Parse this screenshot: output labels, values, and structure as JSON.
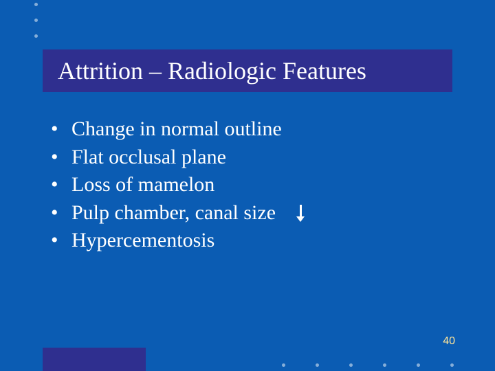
{
  "colors": {
    "background": "#0b5cb3",
    "title_bar": "#2f2f8f",
    "accent_block": "#2f2f8f",
    "text": "#ffffff",
    "page_number": "#ffe59a",
    "deco_dot": "rgba(255,255,255,0.5)"
  },
  "typography": {
    "title_fontsize": 36,
    "body_fontsize": 30,
    "font_family": "Times New Roman",
    "page_number_fontsize": 16,
    "page_number_font_family": "Arial"
  },
  "title": "Attrition – Radiologic Features",
  "bullets": [
    {
      "text": "Change in normal outline",
      "has_down_arrow": false
    },
    {
      "text": "Flat occlusal plane",
      "has_down_arrow": false
    },
    {
      "text": "Loss of mamelon",
      "has_down_arrow": false
    },
    {
      "text": "Pulp chamber, canal size",
      "has_down_arrow": true
    },
    {
      "text": " Hypercementosis",
      "has_down_arrow": false
    }
  ],
  "page_number": "40",
  "decorations": {
    "top_dots": 3,
    "bottom_dots": 6
  }
}
